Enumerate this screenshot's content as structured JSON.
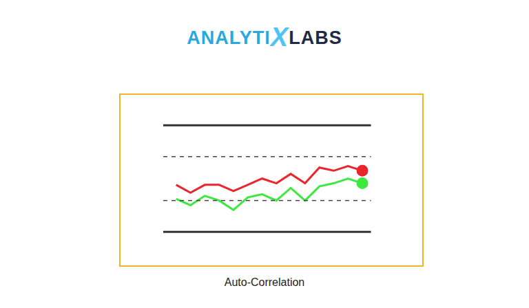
{
  "chart_data": {
    "type": "line",
    "logo_parts": [
      "ANALYTI",
      "X",
      "LABS"
    ],
    "caption": "Auto-Correlation",
    "x": [
      1,
      2,
      3,
      4,
      5,
      6,
      7,
      8,
      9,
      10,
      11,
      12,
      13,
      14
    ],
    "xlim": [
      -2.4,
      17.7
    ],
    "ylim": [
      0,
      10
    ],
    "grid": false,
    "tick_labels": false,
    "series": [
      {
        "color": "#333333",
        "line_style": "solid",
        "x": [
          0.1,
          14.6
        ],
        "values": [
          8.5,
          8.5
        ]
      },
      {
        "color": "#333333",
        "line_style": "solid",
        "x": [
          0.1,
          14.6
        ],
        "values": [
          1.7,
          1.7
        ]
      },
      {
        "color": "#444444",
        "line_style": "dashed",
        "x": [
          0.1,
          14.6
        ],
        "values": [
          6.5,
          6.5
        ]
      },
      {
        "color": "#444444",
        "line_style": "dashed",
        "x": [
          0.1,
          14.6
        ],
        "values": [
          3.7,
          3.7
        ]
      },
      {
        "color": "#e8262b",
        "line_style": "solid",
        "marker": "end",
        "values": [
          4.7,
          4.2,
          4.7,
          4.7,
          4.3,
          4.7,
          5.1,
          4.8,
          5.4,
          4.8,
          5.8,
          5.6,
          5.9,
          5.6
        ]
      },
      {
        "color": "#3ee83e",
        "line_style": "solid",
        "marker": "end",
        "values": [
          3.8,
          3.4,
          4.0,
          3.7,
          3.1,
          3.9,
          4.1,
          3.7,
          4.5,
          3.7,
          4.6,
          4.8,
          5.1,
          4.8
        ]
      }
    ]
  }
}
